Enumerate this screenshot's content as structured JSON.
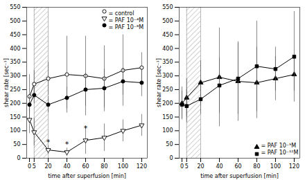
{
  "chart_data": [
    {
      "type": "line",
      "xlabel": "time after superfusion [min]",
      "ylabel": "shear rate [sec⁻¹]",
      "x": [
        0,
        5,
        20,
        40,
        60,
        80,
        100,
        120
      ],
      "xlim": [
        -3,
        126
      ],
      "xticks": [
        0,
        5,
        20,
        40,
        60,
        80,
        100,
        120
      ],
      "ylim": [
        0,
        550
      ],
      "yticks": [
        0,
        50,
        100,
        150,
        200,
        250,
        300,
        350,
        400,
        450,
        500,
        550
      ],
      "shaded_region": [
        5,
        20
      ],
      "legend": "upper right",
      "series": [
        {
          "name": "= control",
          "color": "black",
          "marker": "open_circle",
          "line_style": "solid",
          "values": [
            225,
            270,
            290,
            305,
            300,
            290,
            320,
            330
          ],
          "errors": [
            80,
            50,
            60,
            140,
            145,
            120,
            130,
            55
          ]
        },
        {
          "name": "= PAF 10⁻⁴M",
          "color": "black",
          "marker": "open_triangle_down",
          "line_style": "solid",
          "values": [
            140,
            95,
            30,
            22,
            65,
            75,
            100,
            120
          ],
          "errors": [
            50,
            50,
            15,
            15,
            50,
            50,
            40,
            40
          ]
        },
        {
          "name": "= PAF 10⁻⁸M",
          "color": "black",
          "marker": "circle",
          "line_style": "solid",
          "values": [
            195,
            230,
            195,
            220,
            250,
            255,
            280,
            275
          ],
          "errors": [
            30,
            30,
            30,
            40,
            60,
            70,
            50,
            50
          ]
        }
      ],
      "annotations": [
        {
          "x": 20,
          "y": 50,
          "text": "*"
        },
        {
          "x": 40,
          "y": 42,
          "text": "*"
        },
        {
          "x": 60,
          "y": 100,
          "text": "*"
        }
      ]
    },
    {
      "type": "line",
      "xlabel": "time after superfusion [min]",
      "ylabel": "shear rate [sec⁻¹]",
      "x": [
        0,
        5,
        20,
        40,
        60,
        80,
        100,
        120
      ],
      "xlim": [
        -3,
        126
      ],
      "xticks": [
        0,
        5,
        20,
        40,
        60,
        80,
        100,
        120
      ],
      "ylim": [
        0,
        550
      ],
      "yticks": [
        0,
        50,
        100,
        150,
        200,
        250,
        300,
        350,
        400,
        450,
        500,
        550
      ],
      "shaded_region": [
        5,
        20
      ],
      "legend": "lower right",
      "series": [
        {
          "name": "= PAF 10⁻⁹M",
          "color": "black",
          "marker": "triangle",
          "line_style": "solid",
          "values": [
            200,
            220,
            275,
            295,
            280,
            275,
            290,
            305
          ],
          "errors": [
            60,
            70,
            80,
            180,
            145,
            130,
            80,
            60
          ]
        },
        {
          "name": "= PAF 10⁻¹²M",
          "color": "black",
          "marker": "square",
          "line_style": "solid",
          "values": [
            195,
            190,
            215,
            265,
            290,
            335,
            325,
            370
          ],
          "errors": [
            50,
            60,
            55,
            100,
            130,
            165,
            80,
            165
          ]
        }
      ]
    }
  ]
}
